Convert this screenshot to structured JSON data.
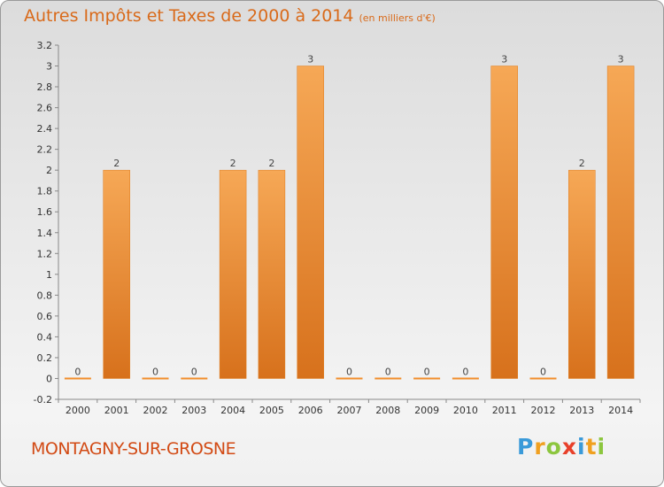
{
  "title": "Autres Impôts et Taxes de 2000 à 2014",
  "unit": "(en milliers d'€)",
  "commune": "MONTAGNY-SUR-GROSNE",
  "logo": {
    "letters": [
      "P",
      "r",
      "o",
      "x",
      "i",
      "t",
      "i"
    ],
    "colors": [
      "#3a9ad9",
      "#f0a020",
      "#8cc63e",
      "#e8402a",
      "#3a9ad9",
      "#f0a020",
      "#8cc63e"
    ]
  },
  "chart_data": {
    "type": "bar",
    "categories": [
      "2000",
      "2001",
      "2002",
      "2003",
      "2004",
      "2005",
      "2006",
      "2007",
      "2008",
      "2009",
      "2010",
      "2011",
      "2012",
      "2013",
      "2014"
    ],
    "values": [
      0,
      2,
      0,
      0,
      2,
      2,
      3,
      0,
      0,
      0,
      0,
      3,
      0,
      2,
      3
    ],
    "data_labels": [
      "0",
      "2",
      "0",
      "0",
      "2",
      "2",
      "3",
      "0",
      "0",
      "0",
      "0",
      "3",
      "0",
      "2",
      "3"
    ],
    "yticks": [
      "-0.2",
      "0",
      "0.2",
      "0.4",
      "0.6",
      "0.8",
      "1",
      "1.2",
      "1.4",
      "1.6",
      "1.8",
      "2",
      "2.2",
      "2.4",
      "2.6",
      "2.8",
      "3",
      "3.2"
    ],
    "ylim": [
      -0.2,
      3.2
    ],
    "grid": false,
    "bar_color": "#f28e2b",
    "bar_color_dark": "#e07a18"
  }
}
